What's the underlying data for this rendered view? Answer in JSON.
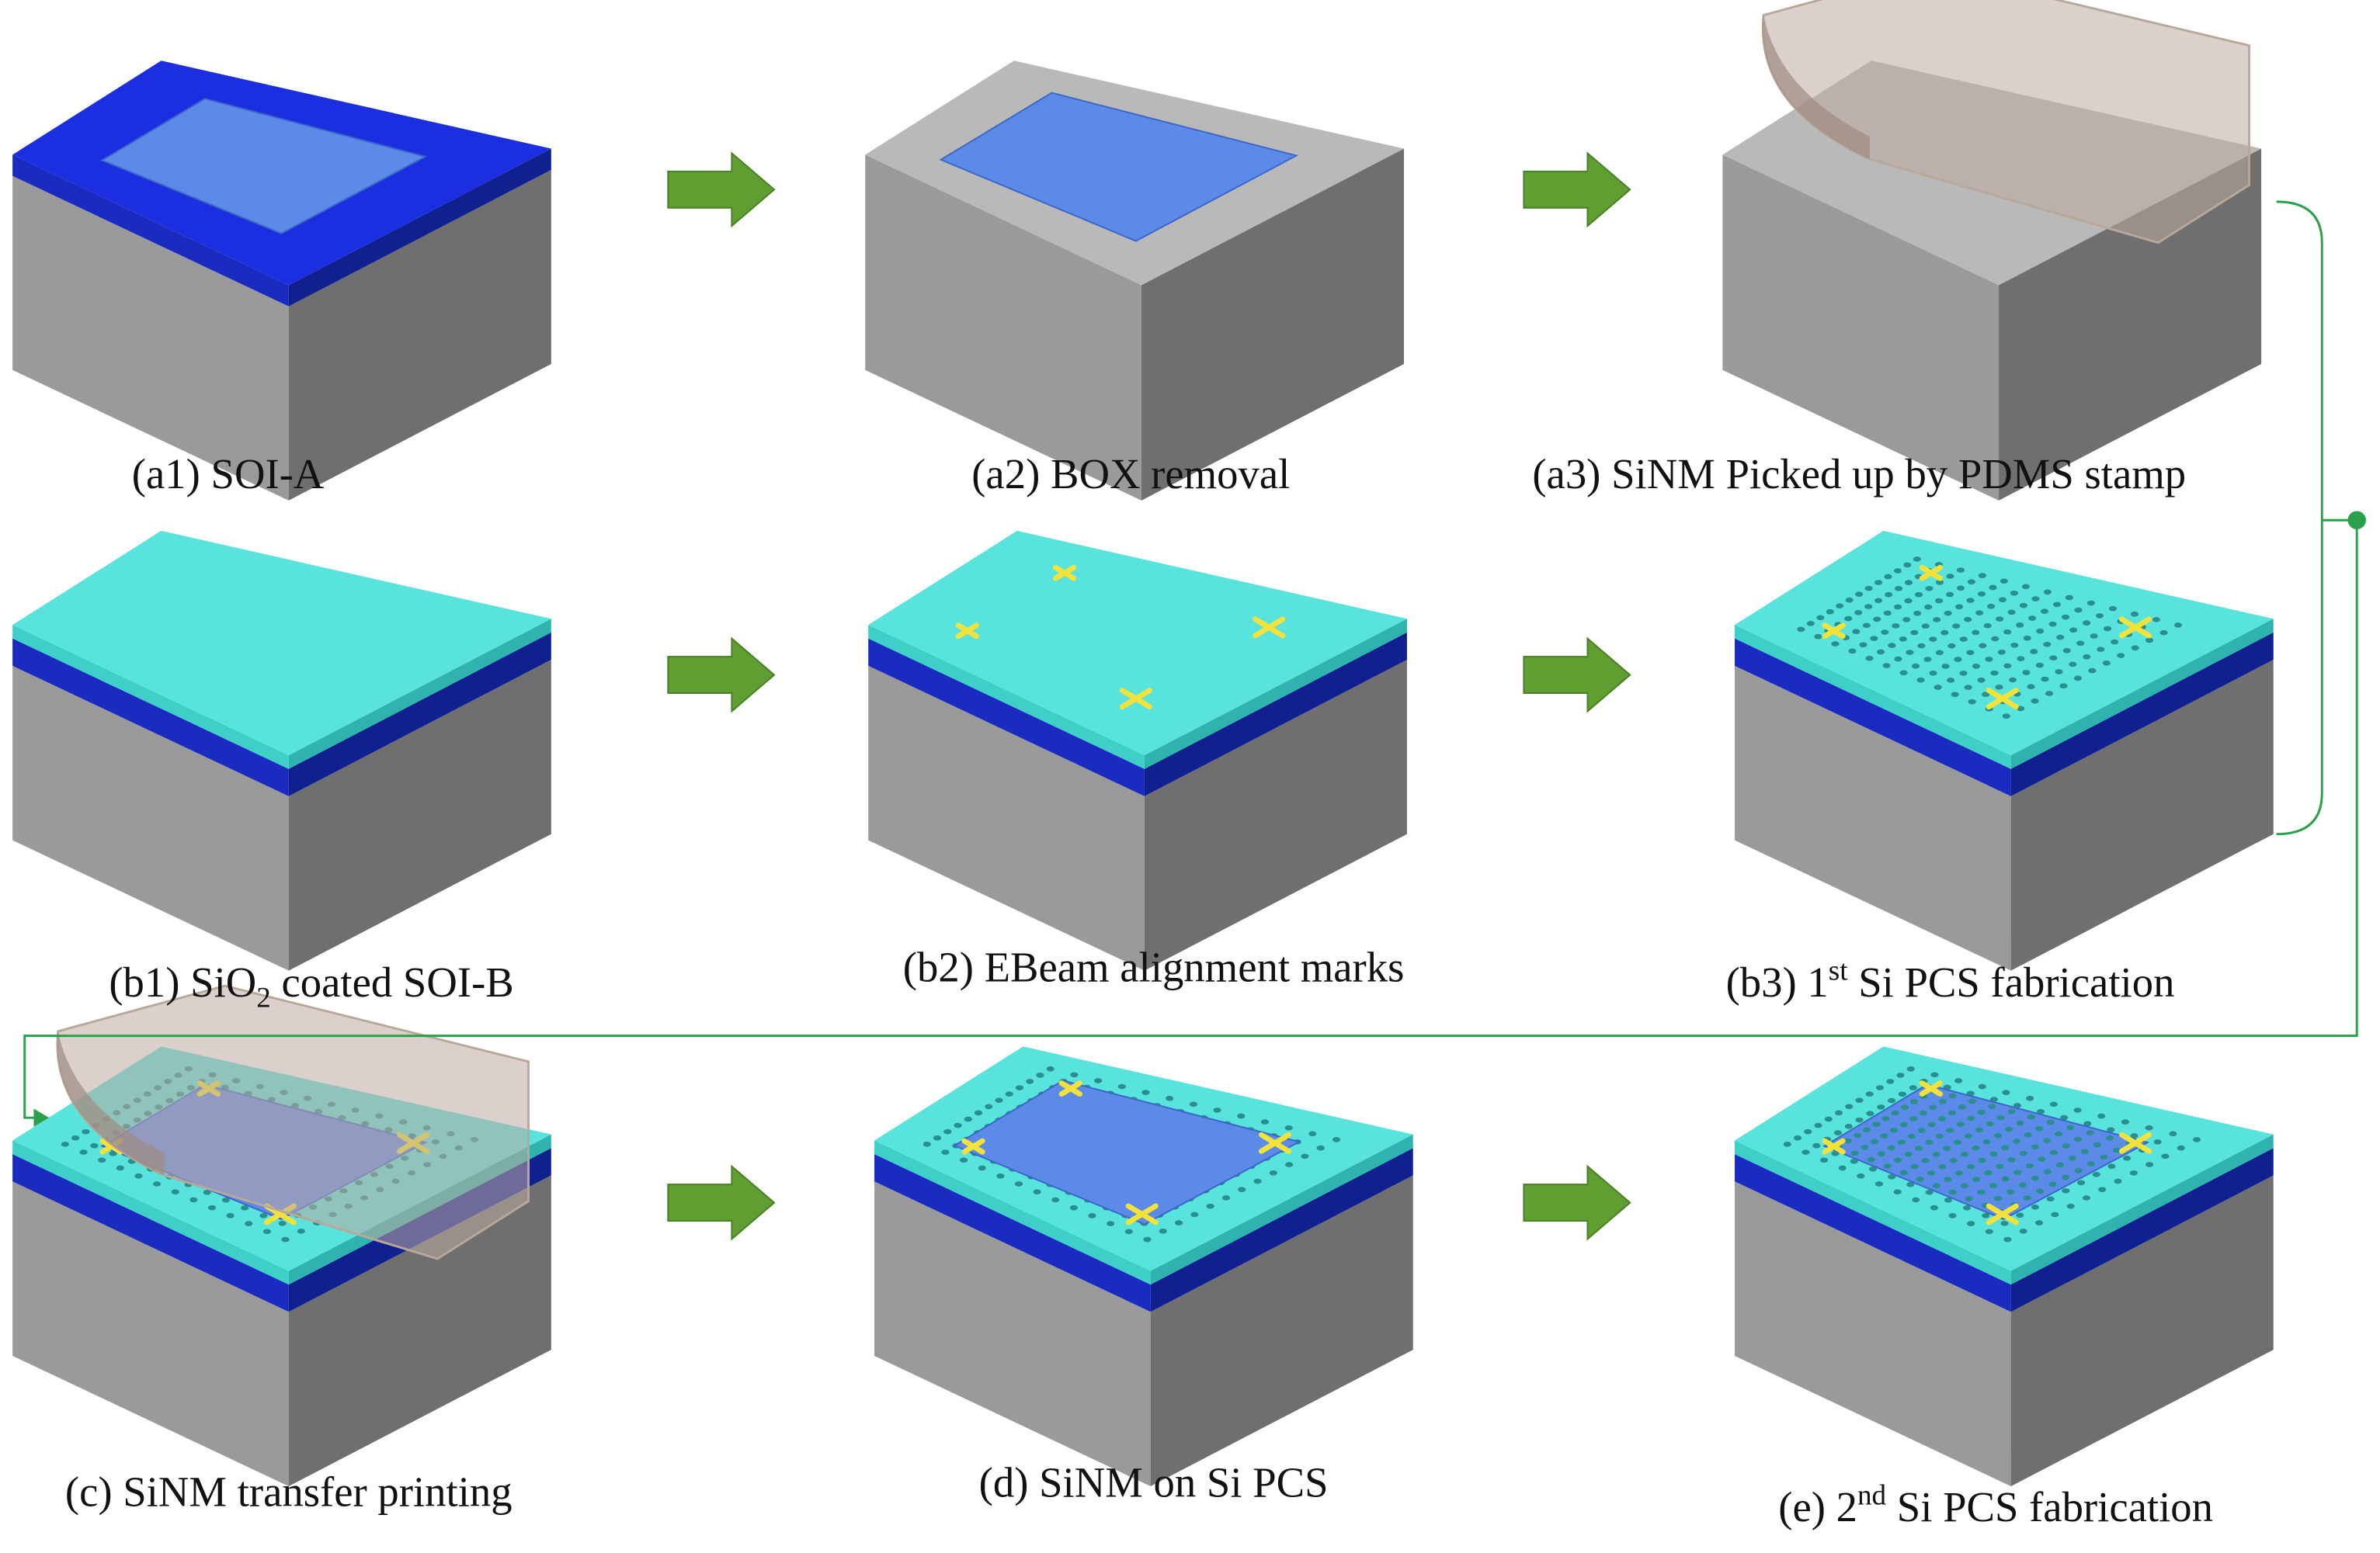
{
  "captions": [
    {
      "pre": "(a1) SOI-A"
    },
    {
      "pre": "(a2) BOX removal"
    },
    {
      "pre": "(a3) SiNM Picked up by PDMS stamp"
    },
    {
      "pre": "(b1) SiO",
      "sub": "2",
      "post": " coated SOI-B"
    },
    {
      "pre": "(b2) EBeam alignment marks"
    },
    {
      "pre": "(b3) 1",
      "sup": "st",
      "post": " Si PCS fabrication"
    },
    {
      "pre": "(c) SiNM transfer printing"
    },
    {
      "pre": "(d) SiNM on Si PCS"
    },
    {
      "pre": "(e) 2",
      "sup": "nd",
      "post": " Si PCS fabrication"
    }
  ]
}
